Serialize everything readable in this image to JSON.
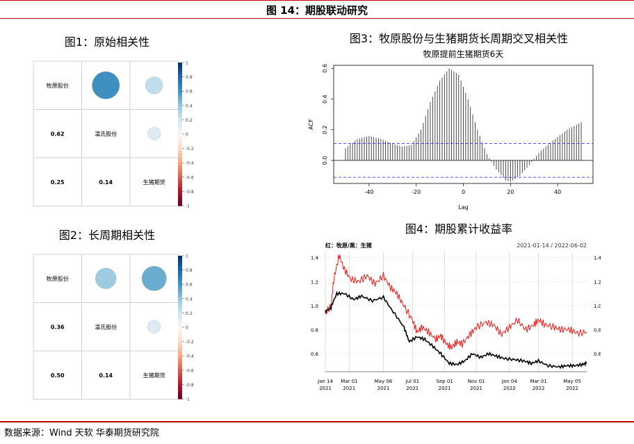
{
  "figure_title": "图 14：期股联动研究",
  "source": "数据来源：Wind 天软 华泰期货研究院",
  "colorbar_ticks": [
    "1",
    "0.8",
    "0.6",
    "0.4",
    "0.2",
    "0",
    "-0.2",
    "-0.4",
    "-0.6",
    "-0.8",
    "-1"
  ],
  "colors": {
    "accent_red": "#c00000",
    "positive": "#2166ac",
    "negative": "#b2182b",
    "acf_band": "#3333ff",
    "stock_line": "#ff0000",
    "futures_line": "#000000"
  },
  "chart_data": [
    {
      "type": "heatmap",
      "title": "图1：原始相关性",
      "labels": [
        "牧原股份",
        "温氏股份",
        "生猪期货"
      ],
      "matrix": [
        [
          1,
          0.62,
          0.25
        ],
        [
          0.62,
          1,
          0.14
        ],
        [
          0.25,
          0.14,
          1
        ]
      ],
      "lower_labels": [
        "0.62",
        "0.25",
        "0.14"
      ],
      "colorbar_range": [
        -1,
        1
      ]
    },
    {
      "type": "heatmap",
      "title": "图2：长周期相关性",
      "labels": [
        "牧原股份",
        "温氏股份",
        "生猪期货"
      ],
      "matrix": [
        [
          1,
          0.36,
          0.5
        ],
        [
          0.36,
          1,
          0.14
        ],
        [
          0.5,
          0.14,
          1
        ]
      ],
      "lower_labels": [
        "0.36",
        "0.50",
        "0.14"
      ],
      "colorbar_range": [
        -1,
        1
      ]
    },
    {
      "type": "bar",
      "title": "图3：牧原股份与生猪期货长周期交叉相关性",
      "subtitle": "牧原提前生猪期货6天",
      "xlabel": "Lag",
      "ylabel": "ACF",
      "xlim": [
        -55,
        55
      ],
      "ylim": [
        -0.15,
        0.62
      ],
      "x_ticks": [
        -40,
        -20,
        0,
        20,
        40
      ],
      "y_ticks": [
        -0.0,
        0.2,
        0.4,
        0.6
      ],
      "y_tick_labels": [
        "0.0",
        "0.2",
        "0.4",
        "0.6"
      ],
      "significance_band": 0.11,
      "acf_keypoints": [
        [
          -50,
          0.08
        ],
        [
          -45,
          0.14
        ],
        [
          -40,
          0.16
        ],
        [
          -35,
          0.14
        ],
        [
          -30,
          0.11
        ],
        [
          -26,
          0.09
        ],
        [
          -22,
          0.1
        ],
        [
          -18,
          0.2
        ],
        [
          -14,
          0.38
        ],
        [
          -10,
          0.52
        ],
        [
          -6,
          0.6
        ],
        [
          -2,
          0.56
        ],
        [
          2,
          0.4
        ],
        [
          6,
          0.2
        ],
        [
          10,
          0.04
        ],
        [
          14,
          -0.06
        ],
        [
          18,
          -0.13
        ],
        [
          20,
          -0.14
        ],
        [
          24,
          -0.1
        ],
        [
          28,
          -0.03
        ],
        [
          32,
          0.05
        ],
        [
          38,
          0.13
        ],
        [
          44,
          0.2
        ],
        [
          50,
          0.25
        ]
      ]
    },
    {
      "type": "line",
      "title": "图4：期股累计收益率",
      "legend_text": "红：牧原/黑：生猪",
      "date_range_label": "2021-01-14 / 2022-06-02",
      "ylim": [
        0.45,
        1.45
      ],
      "y_ticks": [
        0.6,
        0.8,
        1.0,
        1.2,
        1.4
      ],
      "y_tick_labels": [
        "0.6",
        "0.8",
        "1.0",
        "1.2",
        "1.4"
      ],
      "x_tick_labels": [
        [
          "Jan 14",
          "2021"
        ],
        [
          "Mar 01",
          "2021"
        ],
        [
          "May 06",
          "2021"
        ],
        [
          "Jul 01",
          "2021"
        ],
        [
          "Sep 01",
          "2021"
        ],
        [
          "Nov 01",
          "2021"
        ],
        [
          "Jan 04",
          "2022"
        ],
        [
          "Mar 01",
          "2022"
        ],
        [
          "May 05",
          "2022"
        ]
      ],
      "x_tick_dates": [
        "2021-01-14",
        "2021-03-01",
        "2021-05-06",
        "2021-07-01",
        "2021-09-01",
        "2021-11-01",
        "2022-01-04",
        "2022-03-01",
        "2022-05-05"
      ],
      "x_range": [
        "2021-01-14",
        "2022-06-02"
      ],
      "series": [
        {
          "name": "牧原",
          "color": "#ff0000",
          "points": [
            [
              "2021-01-14",
              0.93
            ],
            [
              "2021-01-25",
              1.0
            ],
            [
              "2021-02-01",
              1.25
            ],
            [
              "2021-02-10",
              1.42
            ],
            [
              "2021-02-20",
              1.3
            ],
            [
              "2021-03-05",
              1.22
            ],
            [
              "2021-03-20",
              1.2
            ],
            [
              "2021-04-05",
              1.25
            ],
            [
              "2021-04-20",
              1.18
            ],
            [
              "2021-05-06",
              1.25
            ],
            [
              "2021-05-20",
              1.15
            ],
            [
              "2021-06-01",
              1.1
            ],
            [
              "2021-06-15",
              1.0
            ],
            [
              "2021-07-01",
              0.88
            ],
            [
              "2021-07-10",
              0.78
            ],
            [
              "2021-07-20",
              0.82
            ],
            [
              "2021-08-01",
              0.78
            ],
            [
              "2021-08-15",
              0.72
            ],
            [
              "2021-08-25",
              0.75
            ],
            [
              "2021-09-05",
              0.68
            ],
            [
              "2021-09-15",
              0.65
            ],
            [
              "2021-09-25",
              0.7
            ],
            [
              "2021-10-05",
              0.68
            ],
            [
              "2021-10-20",
              0.76
            ],
            [
              "2021-11-01",
              0.82
            ],
            [
              "2021-11-20",
              0.86
            ],
            [
              "2021-12-05",
              0.84
            ],
            [
              "2021-12-20",
              0.76
            ],
            [
              "2022-01-04",
              0.82
            ],
            [
              "2022-01-20",
              0.88
            ],
            [
              "2022-02-05",
              0.8
            ],
            [
              "2022-02-20",
              0.84
            ],
            [
              "2022-03-01",
              0.88
            ],
            [
              "2022-03-15",
              0.84
            ],
            [
              "2022-04-01",
              0.82
            ],
            [
              "2022-04-15",
              0.8
            ],
            [
              "2022-05-01",
              0.8
            ],
            [
              "2022-05-15",
              0.77
            ],
            [
              "2022-06-02",
              0.78
            ]
          ]
        },
        {
          "name": "生猪",
          "color": "#000000",
          "points": [
            [
              "2021-01-14",
              0.95
            ],
            [
              "2021-01-25",
              0.98
            ],
            [
              "2021-02-05",
              1.1
            ],
            [
              "2021-02-20",
              1.1
            ],
            [
              "2021-03-10",
              1.05
            ],
            [
              "2021-03-25",
              1.08
            ],
            [
              "2021-04-15",
              1.04
            ],
            [
              "2021-05-06",
              1.07
            ],
            [
              "2021-05-25",
              0.95
            ],
            [
              "2021-06-15",
              0.82
            ],
            [
              "2021-06-25",
              0.7
            ],
            [
              "2021-07-10",
              0.74
            ],
            [
              "2021-07-25",
              0.72
            ],
            [
              "2021-08-10",
              0.66
            ],
            [
              "2021-08-25",
              0.6
            ],
            [
              "2021-09-10",
              0.52
            ],
            [
              "2021-09-25",
              0.51
            ],
            [
              "2021-10-10",
              0.54
            ],
            [
              "2021-10-25",
              0.6
            ],
            [
              "2021-11-10",
              0.57
            ],
            [
              "2021-11-25",
              0.6
            ],
            [
              "2021-12-10",
              0.58
            ],
            [
              "2021-12-25",
              0.56
            ],
            [
              "2022-01-15",
              0.55
            ],
            [
              "2022-02-01",
              0.54
            ],
            [
              "2022-02-15",
              0.52
            ],
            [
              "2022-03-01",
              0.54
            ],
            [
              "2022-03-20",
              0.5
            ],
            [
              "2022-04-10",
              0.49
            ],
            [
              "2022-04-25",
              0.5
            ],
            [
              "2022-05-10",
              0.5
            ],
            [
              "2022-05-25",
              0.51
            ],
            [
              "2022-06-02",
              0.52
            ]
          ]
        }
      ]
    }
  ]
}
